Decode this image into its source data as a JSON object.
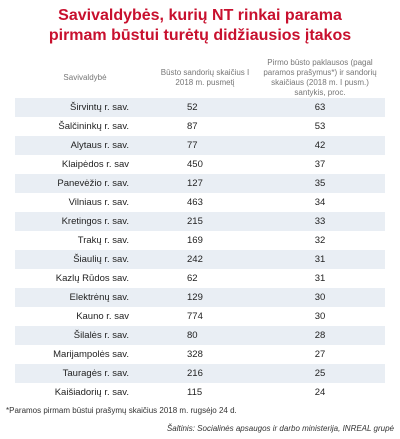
{
  "header": {
    "title_lines": [
      "Savivaldybės, kurių NT rinkai parama",
      "pirmam būstui turėtų didžiausios įtakos"
    ]
  },
  "table": {
    "columns": [
      "Savivaldybė",
      "Būsto sandorių skaičius I 2018 m. pusmetį",
      "Pirmo būsto paklausos (pagal paramos prašymus*) ir sandorių skaičiaus (2018 m. I pusm.) santykis, proc."
    ],
    "rows": [
      [
        "Širvintų r. sav.",
        52,
        63
      ],
      [
        "Šalčininkų r. sav.",
        87,
        53
      ],
      [
        "Alytaus r. sav.",
        77,
        42
      ],
      [
        "Klaipėdos r. sav",
        450,
        37
      ],
      [
        "Panevėžio r. sav.",
        127,
        35
      ],
      [
        "Vilniaus r. sav.",
        463,
        34
      ],
      [
        "Kretingos r. sav.",
        215,
        33
      ],
      [
        "Trakų r. sav.",
        169,
        32
      ],
      [
        "Šiaulių r. sav.",
        242,
        31
      ],
      [
        "Kazlų Rūdos sav.",
        62,
        31
      ],
      [
        "Elektrėnų sav.",
        129,
        30
      ],
      [
        "Kauno r. sav",
        774,
        30
      ],
      [
        "Šilalės r. sav.",
        80,
        28
      ],
      [
        "Marijampolės sav.",
        328,
        27
      ],
      [
        "Tauragės r. sav.",
        216,
        25
      ],
      [
        "Kaišiadorių r. sav.",
        115,
        24
      ]
    ]
  },
  "footer": {
    "note": "*Paramos pirmam būstui prašymų skaičius 2018 m. rugsėjo 24 d.",
    "source": "Šaltinis: Socialinės apsaugos ir darbo ministerija, INREAL grupė"
  }
}
